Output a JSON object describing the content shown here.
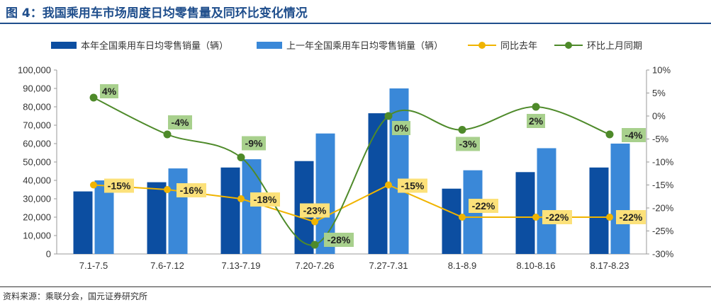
{
  "figure": {
    "title": "图 4：我国乘用车市场周度日均零售量及同环比变化情况",
    "source": "资料来源：乘联分会，国元证券研究所"
  },
  "colors": {
    "bar_current": "#0c4ea1",
    "bar_previous": "#3a88d8",
    "line_yoy": "#f0b400",
    "line_mom": "#4e8a2a",
    "label_yoy_bg": "#fce17a",
    "label_mom_bg": "#a8d08d",
    "title": "#1f4e8c"
  },
  "chart_data": {
    "type": "bar",
    "categories": [
      "7.1-7.5",
      "7.6-7.12",
      "7.13-7.19",
      "7.20-7.26",
      "7.27-7.31",
      "8.1-8.9",
      "8.10-8.16",
      "8.17-8.23"
    ],
    "series": [
      {
        "name": "本年全国乘用车日均零售销量（辆）",
        "type": "bar",
        "axis": "left",
        "values": [
          34000,
          39000,
          47000,
          50500,
          76500,
          35500,
          44500,
          47000
        ]
      },
      {
        "name": "上一年全国乘用车日均零售销量（辆）",
        "type": "bar",
        "axis": "left",
        "values": [
          40000,
          46500,
          51500,
          65500,
          90000,
          45500,
          57500,
          60000
        ]
      },
      {
        "name": "同比去年",
        "type": "line",
        "axis": "right",
        "values": [
          -15,
          -16,
          -18,
          -23,
          -15,
          -22,
          -22,
          -22
        ],
        "labels": [
          "-15%",
          "-16%",
          "-18%",
          "-23%",
          "-15%",
          "-22%",
          "-22%",
          "-22%"
        ]
      },
      {
        "name": "环比上月同期",
        "type": "line",
        "axis": "right",
        "smooth": true,
        "values": [
          4,
          -4,
          -9,
          -28,
          0,
          -3,
          2,
          -4
        ],
        "labels": [
          "4%",
          "-4%",
          "-9%",
          "-28%",
          "0%",
          "-3%",
          "2%",
          "-4%"
        ]
      }
    ],
    "y_left": {
      "ylim": [
        0,
        100000
      ],
      "ticks": [
        "0",
        "10,000",
        "20,000",
        "30,000",
        "40,000",
        "50,000",
        "60,000",
        "70,000",
        "80,000",
        "90,000",
        "100,000"
      ]
    },
    "y_right": {
      "ylim": [
        -30,
        10
      ],
      "ticks": [
        "-30%",
        "-25%",
        "-20%",
        "-15%",
        "-10%",
        "-5%",
        "0%",
        "5%",
        "10%"
      ]
    },
    "legend_position": "top",
    "grid": false
  }
}
